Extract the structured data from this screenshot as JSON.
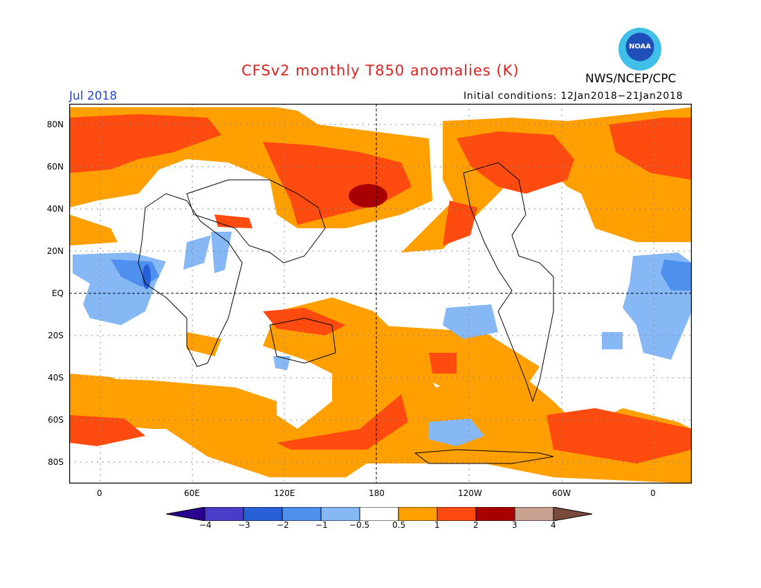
{
  "header": {
    "title": "CFSv2 monthly T850 anomalies (K)",
    "month": "Jul 2018",
    "initial_conditions": "Initial conditions: 12Jan2018−21Jan2018",
    "agency": "NWS/NCEP/CPC",
    "logo_text": "NOAA"
  },
  "map": {
    "lat_labels": [
      "80N",
      "60N",
      "40N",
      "20N",
      "EQ",
      "20S",
      "40S",
      "60S",
      "80S"
    ],
    "lon_labels": [
      "0",
      "60E",
      "120E",
      "180",
      "120W",
      "60W",
      "0"
    ]
  },
  "colorbar": {
    "labels": [
      "−4",
      "−3",
      "−2",
      "−1",
      "−0.5",
      "0.5",
      "1",
      "2",
      "3",
      "4"
    ],
    "colors": [
      "#2a0090",
      "#4b3cc8",
      "#2860d8",
      "#4f90ee",
      "#86b8f6",
      "#ffffff",
      "#ffa000",
      "#ff4a10",
      "#a80000",
      "#c8a090",
      "#7a4a3a"
    ]
  }
}
